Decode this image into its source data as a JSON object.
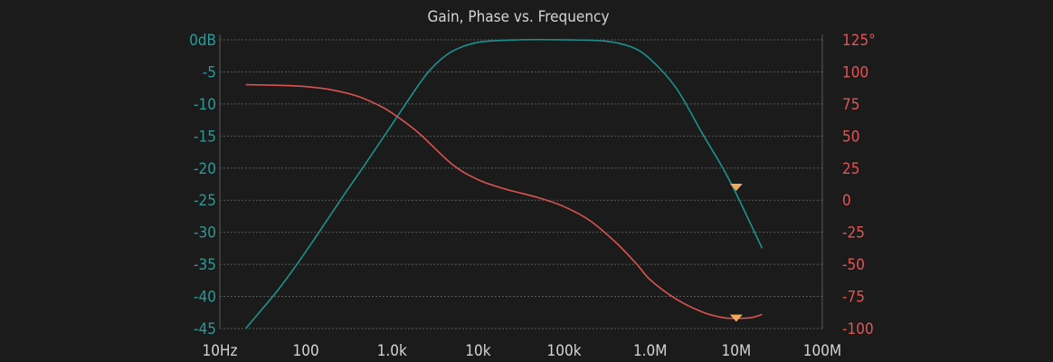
{
  "chart_data": {
    "type": "line",
    "title": "Gain, Phase vs. Frequency",
    "x_scale": "log",
    "x_ticks": [
      {
        "value": 10,
        "label": "10Hz"
      },
      {
        "value": 100,
        "label": "100"
      },
      {
        "value": 1000,
        "label": "1.0k"
      },
      {
        "value": 10000,
        "label": "10k"
      },
      {
        "value": 100000,
        "label": "100k"
      },
      {
        "value": 1000000,
        "label": "1.0M"
      },
      {
        "value": 10000000,
        "label": "10M"
      },
      {
        "value": 100000000,
        "label": "100M"
      }
    ],
    "xlim": [
      10,
      100000000
    ],
    "y_left": {
      "ylim": [
        -45,
        0
      ],
      "ticks": [
        {
          "value": 0,
          "label": "0dB"
        },
        {
          "value": -5,
          "label": "-5"
        },
        {
          "value": -10,
          "label": "-10"
        },
        {
          "value": -15,
          "label": "-15"
        },
        {
          "value": -20,
          "label": "-20"
        },
        {
          "value": -25,
          "label": "-25"
        },
        {
          "value": -30,
          "label": "-30"
        },
        {
          "value": -35,
          "label": "-35"
        },
        {
          "value": -40,
          "label": "-40"
        },
        {
          "value": -45,
          "label": "-45"
        }
      ]
    },
    "y_right": {
      "ylim": [
        -100,
        125
      ],
      "ticks": [
        {
          "value": 125,
          "label": "125°"
        },
        {
          "value": 100,
          "label": "100"
        },
        {
          "value": 75,
          "label": "75"
        },
        {
          "value": 50,
          "label": "50"
        },
        {
          "value": 25,
          "label": "25"
        },
        {
          "value": 0,
          "label": "0"
        },
        {
          "value": -25,
          "label": "-25"
        },
        {
          "value": -50,
          "label": "-50"
        },
        {
          "value": -75,
          "label": "-75"
        },
        {
          "value": -100,
          "label": "-100"
        }
      ]
    },
    "grid": true,
    "series": [
      {
        "axis": "left",
        "color": "#1e9090",
        "x": [
          20,
          30,
          50,
          100,
          200,
          300,
          500,
          1000,
          2000,
          3000,
          5000,
          10000,
          30000,
          100000,
          300000,
          600000,
          1000000,
          2000000,
          4000000,
          7000000,
          10000000,
          20000000
        ],
        "y": [
          -45,
          -42.2,
          -38.6,
          -33,
          -27,
          -23.5,
          -19.2,
          -13.2,
          -7.2,
          -4.2,
          -1.8,
          -0.4,
          0,
          0,
          -0.2,
          -1.1,
          -3,
          -7.5,
          -14.5,
          -20,
          -24,
          -32.5
        ]
      },
      {
        "axis": "right",
        "color": "#d9534f",
        "x": [
          20,
          50,
          100,
          200,
          400,
          700,
          1000,
          2000,
          5000,
          10000,
          20000,
          50000,
          100000,
          200000,
          400000,
          700000,
          1000000,
          2000000,
          4000000,
          7000000,
          10000000,
          15000000,
          20000000
        ],
        "y": [
          90,
          89.5,
          88.5,
          86,
          81,
          74,
          68,
          53,
          28,
          16,
          9,
          2,
          -5,
          -16,
          -33,
          -50,
          -62,
          -77,
          -87,
          -91.5,
          -92,
          -91.5,
          -89
        ]
      }
    ],
    "markers": [
      {
        "color": "#f0a85a",
        "x": 10000000,
        "y_left": -23
      },
      {
        "color": "#f0a85a",
        "x": 10000000,
        "y_right": -92
      }
    ]
  }
}
